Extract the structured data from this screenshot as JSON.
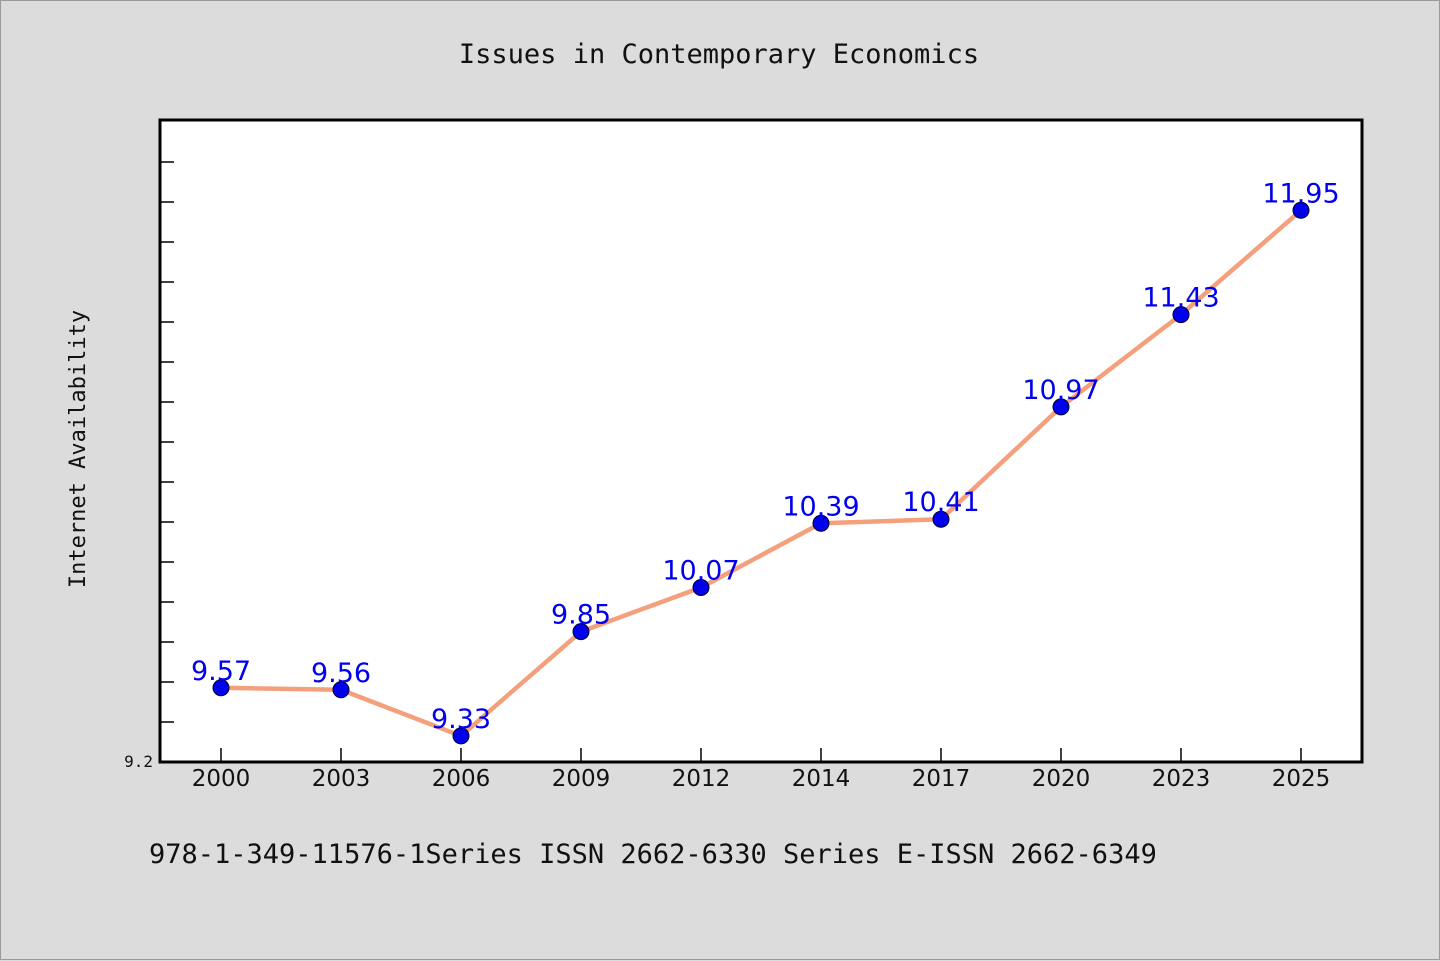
{
  "chart_data": {
    "type": "line",
    "title": "Issues in Contemporary Economics",
    "ylabel": "Internet Availability",
    "xlabel": "",
    "categories": [
      "2000",
      "2003",
      "2006",
      "2009",
      "2012",
      "2014",
      "2017",
      "2020",
      "2023",
      "2025"
    ],
    "series": [
      {
        "values": [
          9.57,
          9.56,
          9.33,
          9.85,
          10.07,
          10.39,
          10.41,
          10.97,
          11.43,
          11.95
        ]
      }
    ],
    "data_labels": [
      "9.57",
      "9.56",
      "9.33",
      "9.85",
      "10.07",
      "10.39",
      "10.41",
      "10.97",
      "11.43",
      "11.95"
    ],
    "ylim": [
      9.2,
      12.4
    ],
    "ytick_label": "9.2",
    "grid": false,
    "line_color": "#f4a07c",
    "marker_color": "#0000ee",
    "label_color": "#0000ee"
  },
  "footer_text": "978-1-349-11576-1Series ISSN 2662-6330 Series E-ISSN 2662-6349"
}
